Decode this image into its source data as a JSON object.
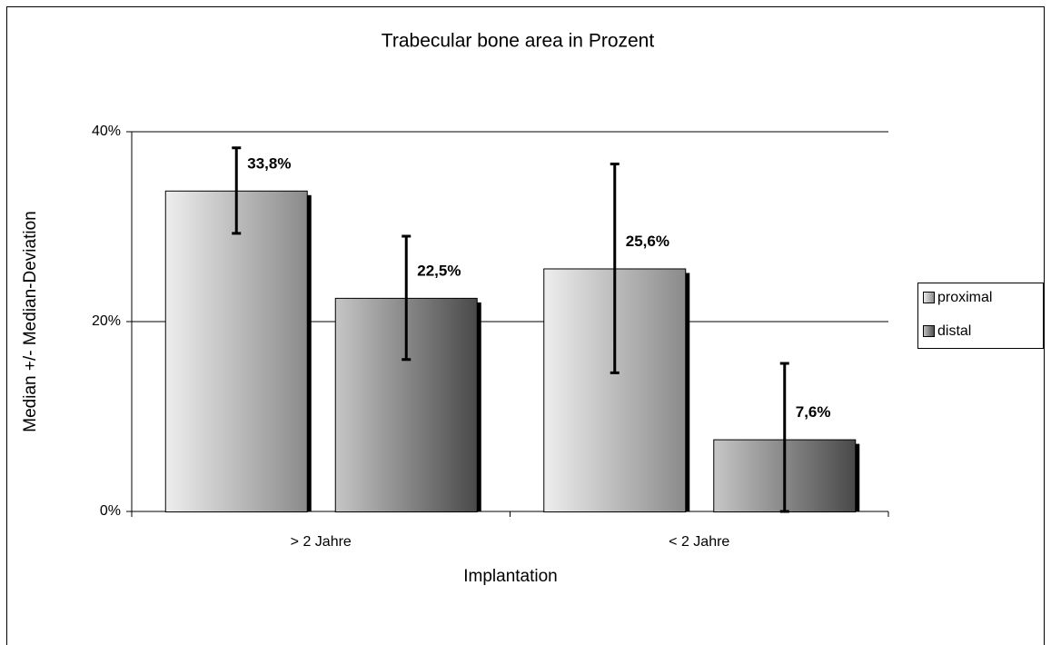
{
  "chart_data": {
    "type": "bar",
    "title": "Trabecular bone area in Prozent",
    "x_label": "Implantation",
    "y_label": "Median +/- Median-Deviation",
    "categories": [
      "> 2 Jahre",
      "< 2 Jahre"
    ],
    "series": [
      {
        "name": "proximal",
        "color": "#d4d4d4",
        "values": [
          33.8,
          25.6
        ],
        "errors": [
          4.5,
          11
        ],
        "value_labels": [
          "33,8%",
          "25,6%"
        ]
      },
      {
        "name": "distal",
        "color": "#707070",
        "values": [
          22.5,
          7.6
        ],
        "errors": [
          6.5,
          8
        ],
        "value_labels": [
          "22,5%",
          "7,6%"
        ]
      }
    ],
    "ylim": [
      0,
      40
    ],
    "yticks": [
      {
        "value": 0,
        "label": "0%"
      },
      {
        "value": 20,
        "label": "20%"
      },
      {
        "value": 40,
        "label": "40%"
      }
    ],
    "grid": true,
    "legend": "right"
  }
}
